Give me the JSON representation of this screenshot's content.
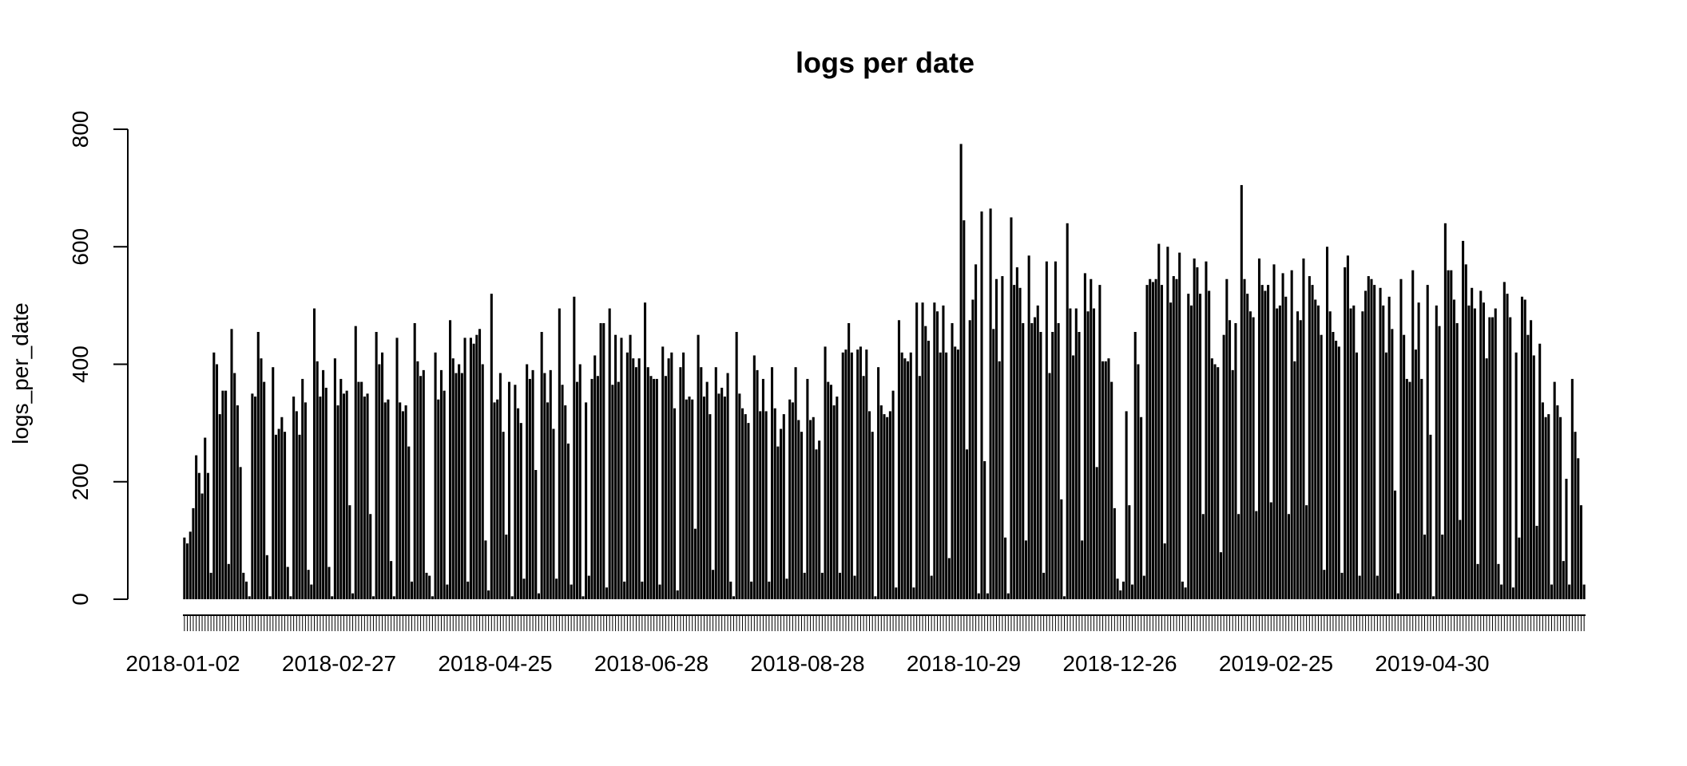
{
  "chart_data": {
    "type": "bar",
    "title": "logs per date",
    "xlabel": "",
    "ylabel": "logs_per_date",
    "ylim": [
      0,
      800
    ],
    "yticks": [
      0,
      200,
      400,
      600,
      800
    ],
    "xtick_labels": [
      "2018-01-02",
      "2018-02-27",
      "2018-04-25",
      "2018-06-28",
      "2018-08-28",
      "2018-10-29",
      "2018-12-26",
      "2019-02-25",
      "2019-04-30"
    ],
    "grid": false,
    "legend": "none",
    "bar_color": "#000000",
    "values": [
      105,
      95,
      115,
      155,
      245,
      215,
      180,
      275,
      215,
      45,
      420,
      400,
      315,
      355,
      355,
      60,
      460,
      385,
      330,
      225,
      45,
      30,
      5,
      350,
      345,
      455,
      410,
      370,
      75,
      5,
      395,
      280,
      290,
      310,
      285,
      55,
      5,
      345,
      320,
      280,
      375,
      335,
      50,
      25,
      495,
      405,
      345,
      390,
      360,
      55,
      5,
      410,
      330,
      375,
      350,
      355,
      160,
      10,
      465,
      370,
      370,
      345,
      350,
      145,
      5,
      455,
      400,
      420,
      335,
      340,
      65,
      5,
      445,
      335,
      320,
      330,
      260,
      30,
      470,
      405,
      380,
      390,
      45,
      40,
      5,
      420,
      340,
      390,
      355,
      25,
      475,
      410,
      385,
      400,
      385,
      445,
      30,
      445,
      435,
      450,
      460,
      400,
      100,
      15,
      520,
      335,
      340,
      385,
      285,
      110,
      370,
      5,
      365,
      325,
      300,
      35,
      400,
      375,
      390,
      220,
      10,
      455,
      385,
      335,
      390,
      290,
      35,
      495,
      365,
      330,
      265,
      25,
      515,
      370,
      400,
      5,
      335,
      40,
      375,
      415,
      380,
      470,
      470,
      20,
      495,
      365,
      450,
      370,
      445,
      30,
      420,
      450,
      410,
      395,
      410,
      30,
      505,
      395,
      380,
      375,
      375,
      25,
      430,
      380,
      410,
      420,
      325,
      15,
      395,
      420,
      340,
      345,
      340,
      120,
      450,
      395,
      345,
      370,
      315,
      50,
      395,
      350,
      360,
      345,
      385,
      30,
      5,
      455,
      350,
      325,
      315,
      300,
      30,
      415,
      390,
      320,
      375,
      320,
      30,
      395,
      325,
      260,
      290,
      315,
      35,
      340,
      335,
      395,
      305,
      285,
      45,
      375,
      305,
      310,
      255,
      270,
      45,
      430,
      370,
      365,
      330,
      345,
      45,
      420,
      425,
      470,
      420,
      40,
      425,
      430,
      380,
      425,
      320,
      285,
      5,
      395,
      330,
      315,
      310,
      320,
      355,
      20,
      475,
      420,
      410,
      405,
      420,
      20,
      505,
      380,
      505,
      465,
      440,
      40,
      505,
      490,
      420,
      500,
      420,
      70,
      470,
      430,
      425,
      775,
      645,
      255,
      475,
      510,
      570,
      10,
      660,
      235,
      10,
      665,
      460,
      545,
      405,
      550,
      105,
      10,
      650,
      535,
      565,
      530,
      470,
      100,
      585,
      470,
      480,
      500,
      455,
      45,
      575,
      385,
      455,
      575,
      470,
      170,
      5,
      640,
      495,
      415,
      495,
      455,
      100,
      555,
      490,
      545,
      495,
      225,
      535,
      405,
      405,
      410,
      370,
      155,
      35,
      15,
      30,
      320,
      160,
      25,
      455,
      400,
      310,
      40,
      535,
      545,
      540,
      545,
      605,
      535,
      95,
      600,
      505,
      550,
      545,
      590,
      30,
      20,
      520,
      500,
      580,
      565,
      520,
      145,
      575,
      525,
      410,
      400,
      395,
      80,
      450,
      545,
      475,
      390,
      470,
      145,
      705,
      545,
      520,
      490,
      480,
      150,
      580,
      535,
      525,
      535,
      165,
      570,
      495,
      500,
      555,
      515,
      145,
      560,
      405,
      490,
      475,
      580,
      160,
      550,
      535,
      510,
      500,
      450,
      50,
      600,
      490,
      455,
      440,
      430,
      45,
      565,
      585,
      495,
      500,
      420,
      40,
      490,
      525,
      550,
      545,
      535,
      40,
      530,
      500,
      420,
      515,
      460,
      185,
      10,
      545,
      450,
      375,
      370,
      560,
      425,
      505,
      375,
      110,
      535,
      280,
      5,
      500,
      465,
      110,
      640,
      560,
      560,
      510,
      470,
      135,
      610,
      570,
      500,
      530,
      495,
      60,
      525,
      505,
      410,
      480,
      480,
      495,
      60,
      25,
      540,
      520,
      480,
      20,
      420,
      105,
      515,
      510,
      450,
      475,
      415,
      125,
      435,
      335,
      310,
      315,
      25,
      370,
      330,
      310,
      65,
      205,
      25,
      375,
      285,
      240,
      160,
      25
    ]
  }
}
